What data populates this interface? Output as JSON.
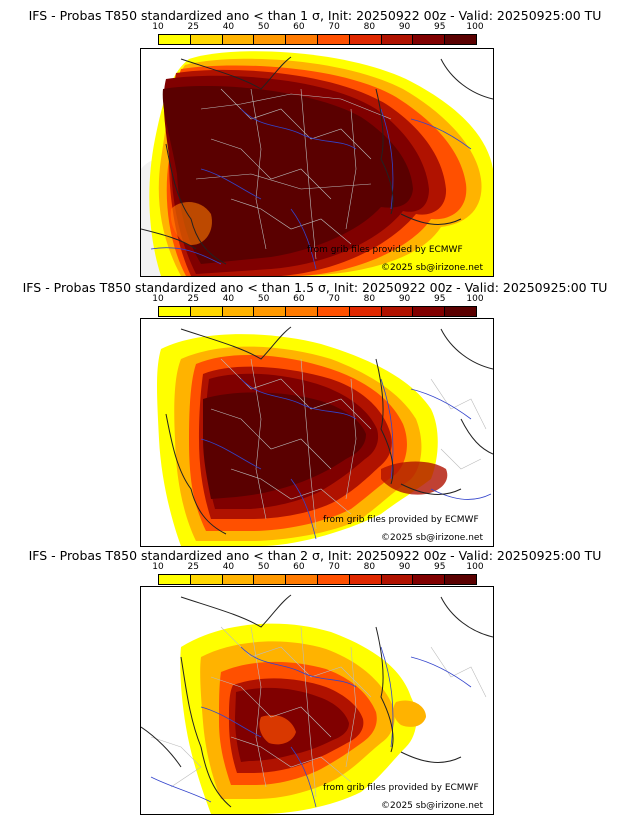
{
  "colorbar": {
    "labels": [
      "10",
      "25",
      "40",
      "50",
      "60",
      "70",
      "80",
      "90",
      "95",
      "100"
    ],
    "colors": [
      "#ffff00",
      "#ffd700",
      "#ffb300",
      "#ff9900",
      "#ff7a00",
      "#ff5000",
      "#e02800",
      "#b01200",
      "#800000",
      "#5a0000"
    ]
  },
  "map_colors": {
    "land": "#ffffff",
    "borders": "#222222",
    "regions": "#bbbbbb",
    "rivers": "#3344cc"
  },
  "credits": {
    "source": "from grib files provided by ECMWF",
    "copyright": "©2025 sb@irizone.net"
  },
  "panels": [
    {
      "title": "IFS - Probas T850  standardized ano < than 1 σ, Init: 20250922 00z - Valid: 20250925:00 TU",
      "threshold_sigma": 1
    },
    {
      "title": "IFS - Probas T850  standardized ano < than 1.5 σ, Init: 20250922 00z - Valid: 20250925:00 TU",
      "threshold_sigma": 1.5
    },
    {
      "title": "IFS - Probas T850  standardized ano < than 2 σ, Init: 20250922 00z - Valid: 20250925:00 TU",
      "threshold_sigma": 2
    }
  ]
}
